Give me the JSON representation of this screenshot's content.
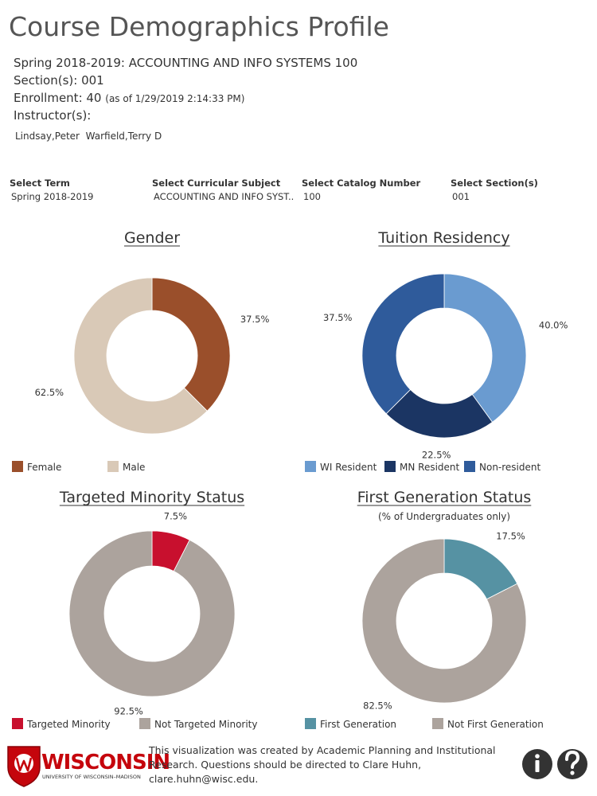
{
  "header": {
    "title": "Course Demographics Profile",
    "term_course": "Spring 2018-2019: ACCOUNTING AND INFO SYSTEMS 100",
    "sections": "Section(s): 001",
    "enrollment": "Enrollment: 40",
    "as_of": "(as of 1/29/2019 2:14:33 PM)",
    "instructor_label": "Instructor(s):",
    "instructors": [
      "Lindsay,Peter",
      "Warfield,Terry D"
    ]
  },
  "filters": [
    {
      "label": "Select Term",
      "value": "Spring 2018-2019"
    },
    {
      "label": "Select Curricular Subject",
      "value": "ACCOUNTING AND INFO SYST.."
    },
    {
      "label": "Select Catalog Number",
      "value": "100"
    },
    {
      "label": "Select Section(s)",
      "value": "001"
    }
  ],
  "chart_data": [
    {
      "type": "donut",
      "title": "Gender",
      "categories": [
        "Female",
        "Male"
      ],
      "values": [
        37.5,
        62.5
      ],
      "value_labels": [
        "37.5%",
        "62.5%"
      ],
      "colors": [
        "#9a4f2b",
        "#d9c9b7"
      ]
    },
    {
      "type": "donut",
      "title": "Tuition Residency",
      "categories": [
        "WI Resident",
        "MN Resident",
        "Non-resident"
      ],
      "values": [
        40.0,
        22.5,
        37.5
      ],
      "value_labels": [
        "40.0%",
        "22.5%",
        "37.5%"
      ],
      "colors": [
        "#6a9bd0",
        "#1b3563",
        "#2f5b9b"
      ]
    },
    {
      "type": "donut",
      "title": "Targeted Minority Status",
      "categories": [
        "Targeted Minority",
        "Not Targeted Minority"
      ],
      "values": [
        7.5,
        92.5
      ],
      "value_labels": [
        "7.5%",
        "92.5%"
      ],
      "colors": [
        "#c8102e",
        "#aca39d"
      ]
    },
    {
      "type": "donut",
      "title": "First Generation Status",
      "subtitle": "(% of Undergraduates only)",
      "categories": [
        "First Generation",
        "Not First Generation"
      ],
      "values": [
        17.5,
        82.5
      ],
      "value_labels": [
        "17.5%",
        "82.5%"
      ],
      "colors": [
        "#5692a3",
        "#aca39d"
      ]
    }
  ],
  "footer": {
    "logo": "WISCONSIN",
    "logo_sub": "UNIVERSITY OF WISCONSIN–MADISON",
    "note": "This visualization was created by Academic Planning and Institutional Research. Questions should be directed to Clare Huhn, clare.huhn@wisc.edu."
  }
}
